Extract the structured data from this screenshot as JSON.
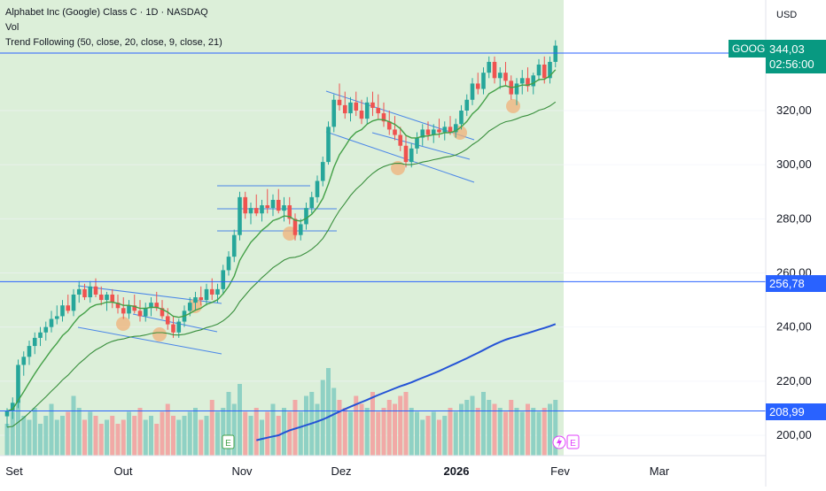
{
  "legend": {
    "title": "Alphabet Inc (Google) Class C · 1D · NASDAQ",
    "vol": "Vol",
    "indicator": "Trend Following (50, close, 20, close, 9, close, 21)"
  },
  "price_axis": {
    "currency": "USD",
    "ticks": [
      "200,00",
      "220,00",
      "240,00",
      "260,00",
      "280,00",
      "300,00",
      "320,00"
    ],
    "tick_values": [
      200,
      220,
      240,
      260,
      280,
      300,
      320
    ]
  },
  "time_axis": {
    "labels": [
      "Set",
      "Out",
      "Nov",
      "Dez",
      "2026",
      "Fev",
      "Mar"
    ],
    "bold": [
      false,
      false,
      false,
      false,
      true,
      false,
      false
    ]
  },
  "markers": {
    "earnings_1": "E",
    "earnings_2": "E",
    "split_icon": "lightning-icon"
  },
  "tags": {
    "symbol": "GOOG",
    "last_price": "344,03",
    "countdown": "02:56:00",
    "level_mid": "256,78",
    "level_low": "208,99"
  },
  "colors": {
    "up": "#26a69a",
    "down": "#ef5350",
    "background_zone": "#dcefd9",
    "level_line": "#2962ff",
    "ema_fast": "#43a047",
    "ema_slow": "#388e3c",
    "sma_long": "#2453d6",
    "symbol_tag": "#089981",
    "highlight": "#f0b27a"
  },
  "chart_data": {
    "type": "candlestick",
    "symbol": "GOOG",
    "ylim": [
      190,
      360
    ],
    "horizontal_levels": [
      344.03,
      256.78,
      208.99
    ],
    "candles": [
      [
        207,
        210,
        203,
        209
      ],
      [
        209,
        214,
        206,
        212
      ],
      [
        212,
        228,
        210,
        226
      ],
      [
        226,
        231,
        222,
        229
      ],
      [
        229,
        235,
        226,
        233
      ],
      [
        233,
        238,
        230,
        236
      ],
      [
        236,
        240,
        233,
        238
      ],
      [
        238,
        242,
        235,
        240
      ],
      [
        240,
        246,
        238,
        243
      ],
      [
        243,
        248,
        241,
        244
      ],
      [
        244,
        250,
        242,
        248
      ],
      [
        248,
        252,
        245,
        246
      ],
      [
        246,
        254,
        244,
        252
      ],
      [
        252,
        257,
        249,
        254
      ],
      [
        254,
        256,
        250,
        251
      ],
      [
        251,
        257,
        249,
        255
      ],
      [
        255,
        258,
        251,
        252
      ],
      [
        252,
        255,
        248,
        250
      ],
      [
        250,
        253,
        246,
        252
      ],
      [
        252,
        254,
        247,
        249
      ],
      [
        249,
        252,
        245,
        247
      ],
      [
        247,
        251,
        243,
        245
      ],
      [
        245,
        250,
        243,
        248
      ],
      [
        248,
        252,
        245,
        246
      ],
      [
        246,
        250,
        242,
        244
      ],
      [
        244,
        249,
        242,
        247
      ],
      [
        247,
        251,
        244,
        249
      ],
      [
        249,
        253,
        246,
        247
      ],
      [
        247,
        250,
        243,
        244
      ],
      [
        244,
        247,
        239,
        241
      ],
      [
        241,
        244,
        236,
        238
      ],
      [
        238,
        243,
        236,
        242
      ],
      [
        242,
        248,
        240,
        246
      ],
      [
        246,
        251,
        244,
        249
      ],
      [
        249,
        253,
        246,
        251
      ],
      [
        251,
        255,
        248,
        250
      ],
      [
        250,
        256,
        248,
        254
      ],
      [
        254,
        258,
        250,
        252
      ],
      [
        252,
        256,
        249,
        254
      ],
      [
        254,
        263,
        252,
        261
      ],
      [
        261,
        268,
        259,
        266
      ],
      [
        266,
        276,
        264,
        274
      ],
      [
        274,
        290,
        272,
        288
      ],
      [
        288,
        290,
        280,
        282
      ],
      [
        282,
        286,
        278,
        284
      ],
      [
        284,
        289,
        281,
        282
      ],
      [
        282,
        287,
        279,
        285
      ],
      [
        285,
        291,
        282,
        284
      ],
      [
        284,
        289,
        281,
        287
      ],
      [
        287,
        291,
        282,
        283
      ],
      [
        283,
        288,
        279,
        285
      ],
      [
        285,
        288,
        278,
        280
      ],
      [
        280,
        282,
        272,
        274
      ],
      [
        274,
        280,
        272,
        278
      ],
      [
        278,
        286,
        276,
        284
      ],
      [
        284,
        290,
        282,
        288
      ],
      [
        288,
        296,
        286,
        294
      ],
      [
        294,
        303,
        292,
        301
      ],
      [
        301,
        316,
        300,
        314
      ],
      [
        314,
        326,
        312,
        324
      ],
      [
        324,
        330,
        320,
        322
      ],
      [
        322,
        327,
        317,
        319
      ],
      [
        319,
        325,
        316,
        323
      ],
      [
        323,
        327,
        318,
        320
      ],
      [
        320,
        324,
        315,
        317
      ],
      [
        317,
        325,
        315,
        323
      ],
      [
        323,
        327,
        318,
        321
      ],
      [
        321,
        326,
        317,
        319
      ],
      [
        319,
        323,
        314,
        316
      ],
      [
        316,
        320,
        311,
        313
      ],
      [
        313,
        318,
        309,
        311
      ],
      [
        311,
        314,
        305,
        307
      ],
      [
        307,
        311,
        299,
        301
      ],
      [
        301,
        308,
        299,
        306
      ],
      [
        306,
        312,
        304,
        310
      ],
      [
        310,
        315,
        307,
        313
      ],
      [
        313,
        316,
        309,
        311
      ],
      [
        311,
        315,
        308,
        313
      ],
      [
        313,
        317,
        310,
        312
      ],
      [
        312,
        316,
        309,
        314
      ],
      [
        314,
        318,
        311,
        312
      ],
      [
        312,
        317,
        310,
        315
      ],
      [
        315,
        322,
        313,
        320
      ],
      [
        320,
        326,
        318,
        324
      ],
      [
        324,
        332,
        322,
        330
      ],
      [
        330,
        334,
        326,
        328
      ],
      [
        328,
        336,
        326,
        334
      ],
      [
        334,
        340,
        332,
        338
      ],
      [
        338,
        340,
        330,
        332
      ],
      [
        332,
        336,
        328,
        334
      ],
      [
        334,
        338,
        329,
        331
      ],
      [
        331,
        333,
        324,
        326
      ],
      [
        326,
        332,
        322,
        330
      ],
      [
        330,
        335,
        326,
        332
      ],
      [
        332,
        336,
        327,
        329
      ],
      [
        329,
        334,
        326,
        333
      ],
      [
        333,
        339,
        331,
        337
      ],
      [
        337,
        340,
        330,
        332
      ],
      [
        332,
        340,
        330,
        338
      ],
      [
        338,
        346,
        336,
        344
      ]
    ],
    "volume": [
      40,
      55,
      70,
      50,
      45,
      60,
      40,
      50,
      65,
      45,
      50,
      55,
      75,
      60,
      45,
      55,
      50,
      40,
      45,
      50,
      40,
      45,
      55,
      50,
      60,
      45,
      50,
      40,
      55,
      65,
      50,
      45,
      50,
      55,
      60,
      45,
      50,
      70,
      55,
      60,
      80,
      65,
      90,
      55,
      50,
      60,
      45,
      55,
      65,
      50,
      60,
      55,
      70,
      55,
      75,
      80,
      65,
      95,
      110,
      85,
      70,
      60,
      55,
      75,
      65,
      60,
      80,
      55,
      60,
      70,
      65,
      75,
      80,
      60,
      55,
      45,
      50,
      55,
      45,
      50,
      60,
      55,
      65,
      70,
      75,
      60,
      80,
      70,
      65,
      60,
      55,
      70,
      60,
      55,
      65,
      60,
      55,
      60,
      65,
      70
    ],
    "indicators": [
      {
        "name": "EMA 9",
        "color": "#43a047"
      },
      {
        "name": "EMA 21",
        "color": "#388e3c"
      },
      {
        "name": "SMA 50",
        "color": "#2453d6"
      }
    ]
  }
}
